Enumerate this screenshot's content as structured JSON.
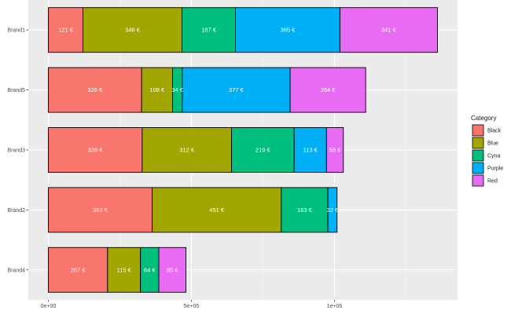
{
  "chart_data": {
    "type": "bar",
    "orientation": "horizontal",
    "stacked": true,
    "categories": [
      "Brand1",
      "Brand5",
      "Brand3",
      "Brand2",
      "Brand4"
    ],
    "series": [
      {
        "name": "Black",
        "color": "#F8766D",
        "values": [
          121000,
          326000,
          328000,
          363000,
          207000
        ],
        "labels": [
          "121 €",
          "326 €",
          "328 €",
          "363 €",
          "207 €"
        ]
      },
      {
        "name": "Blue",
        "color": "#A3A500",
        "values": [
          346000,
          108000,
          312000,
          451000,
          115000
        ],
        "labels": [
          "346 €",
          "108 €",
          "312 €",
          "451 €",
          "115 €"
        ]
      },
      {
        "name": "Cyna",
        "color": "#00BF7D",
        "values": [
          187000,
          34000,
          219000,
          163000,
          64000
        ],
        "labels": [
          "187 €",
          "34 €",
          "219 €",
          "163 €",
          "64 €"
        ]
      },
      {
        "name": "Purple",
        "color": "#00B0F6",
        "values": [
          365000,
          377000,
          113000,
          32000,
          null
        ],
        "labels": [
          "365 €",
          "377 €",
          "113 €",
          "32 €",
          ""
        ]
      },
      {
        "name": "Red",
        "color": "#E76BF3",
        "values": [
          341000,
          264000,
          59000,
          null,
          95000
        ],
        "labels": [
          "341 €",
          "264 €",
          "59 €",
          "",
          "95 €"
        ]
      }
    ],
    "x_ticks": [
      {
        "value": 0,
        "label": "0e+00"
      },
      {
        "value": 500000,
        "label": "5e+05"
      },
      {
        "value": 1000000,
        "label": "1e+06"
      }
    ],
    "xlim": [
      -70000,
      1430000
    ],
    "legend_title": "Category",
    "legend_position": "right",
    "grid": true
  }
}
